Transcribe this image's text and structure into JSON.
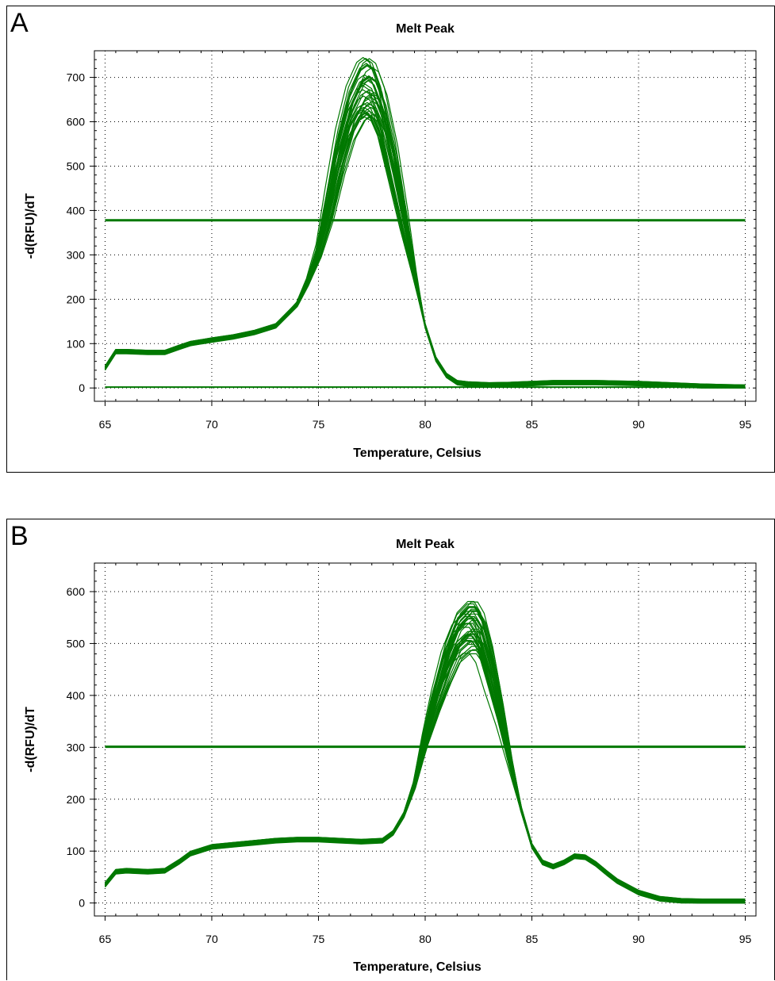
{
  "chart_data": [
    {
      "panel": "A",
      "type": "line",
      "title": "Melt Peak",
      "xlabel": "Temperature, Celsius",
      "ylabel": "-d(RFU)/dT",
      "xlim": [
        64.5,
        95.5
      ],
      "ylim": [
        -30,
        760
      ],
      "xticks": [
        65,
        70,
        75,
        80,
        85,
        90,
        95
      ],
      "yticks": [
        0,
        100,
        200,
        300,
        400,
        500,
        600,
        700
      ],
      "grid": true,
      "line_color": "#007800",
      "threshold": 378,
      "baseline": 2,
      "series_count": 40,
      "peak_temperature": 77.3,
      "peak_range": [
        610,
        730
      ],
      "x": [
        65,
        65.5,
        66,
        67,
        67.8,
        68.5,
        69,
        70,
        71,
        72,
        73,
        74,
        74.5,
        75,
        75.5,
        76,
        76.5,
        77,
        77.3,
        77.6,
        78,
        78.5,
        79,
        79.5,
        80,
        80.5,
        81,
        81.5,
        82,
        83,
        84,
        85,
        86,
        87,
        88,
        89,
        90,
        91,
        92,
        93,
        94,
        95
      ],
      "values": [
        45,
        82,
        82,
        80,
        80,
        92,
        100,
        108,
        115,
        125,
        140,
        190,
        240,
        310,
        420,
        540,
        630,
        680,
        690,
        680,
        630,
        520,
        390,
        260,
        140,
        65,
        28,
        12,
        9,
        7,
        8,
        10,
        12,
        12,
        12,
        11,
        10,
        8,
        6,
        4,
        3,
        2
      ]
    },
    {
      "panel": "B",
      "type": "line",
      "title": "Melt Peak",
      "xlabel": "Temperature, Celsius",
      "ylabel": "-d(RFU)/dT",
      "xlim": [
        64.5,
        95.5
      ],
      "ylim": [
        -25,
        655
      ],
      "xticks": [
        65,
        70,
        75,
        80,
        85,
        90,
        95
      ],
      "yticks": [
        0,
        100,
        200,
        300,
        400,
        500,
        600
      ],
      "grid": true,
      "line_color": "#007800",
      "threshold": 301,
      "series_count": 40,
      "peak_temperature": 82.2,
      "peak_range": [
        450,
        620
      ],
      "x": [
        65,
        65.5,
        66,
        67,
        67.8,
        68.5,
        69,
        70,
        71,
        72,
        73,
        74,
        75,
        76,
        77,
        78,
        78.5,
        79,
        79.5,
        80,
        80.5,
        81,
        81.5,
        82,
        82.3,
        82.6,
        83,
        83.5,
        84,
        84.5,
        85,
        85.5,
        86,
        86.5,
        87,
        87.5,
        88,
        88.5,
        89,
        90,
        91,
        92,
        93,
        94,
        95
      ],
      "values": [
        35,
        60,
        62,
        60,
        62,
        80,
        95,
        108,
        112,
        116,
        120,
        122,
        122,
        120,
        118,
        120,
        135,
        170,
        230,
        320,
        400,
        470,
        520,
        540,
        540,
        520,
        460,
        370,
        270,
        180,
        110,
        78,
        70,
        78,
        90,
        88,
        75,
        58,
        42,
        20,
        8,
        4,
        3,
        3,
        3
      ]
    }
  ]
}
